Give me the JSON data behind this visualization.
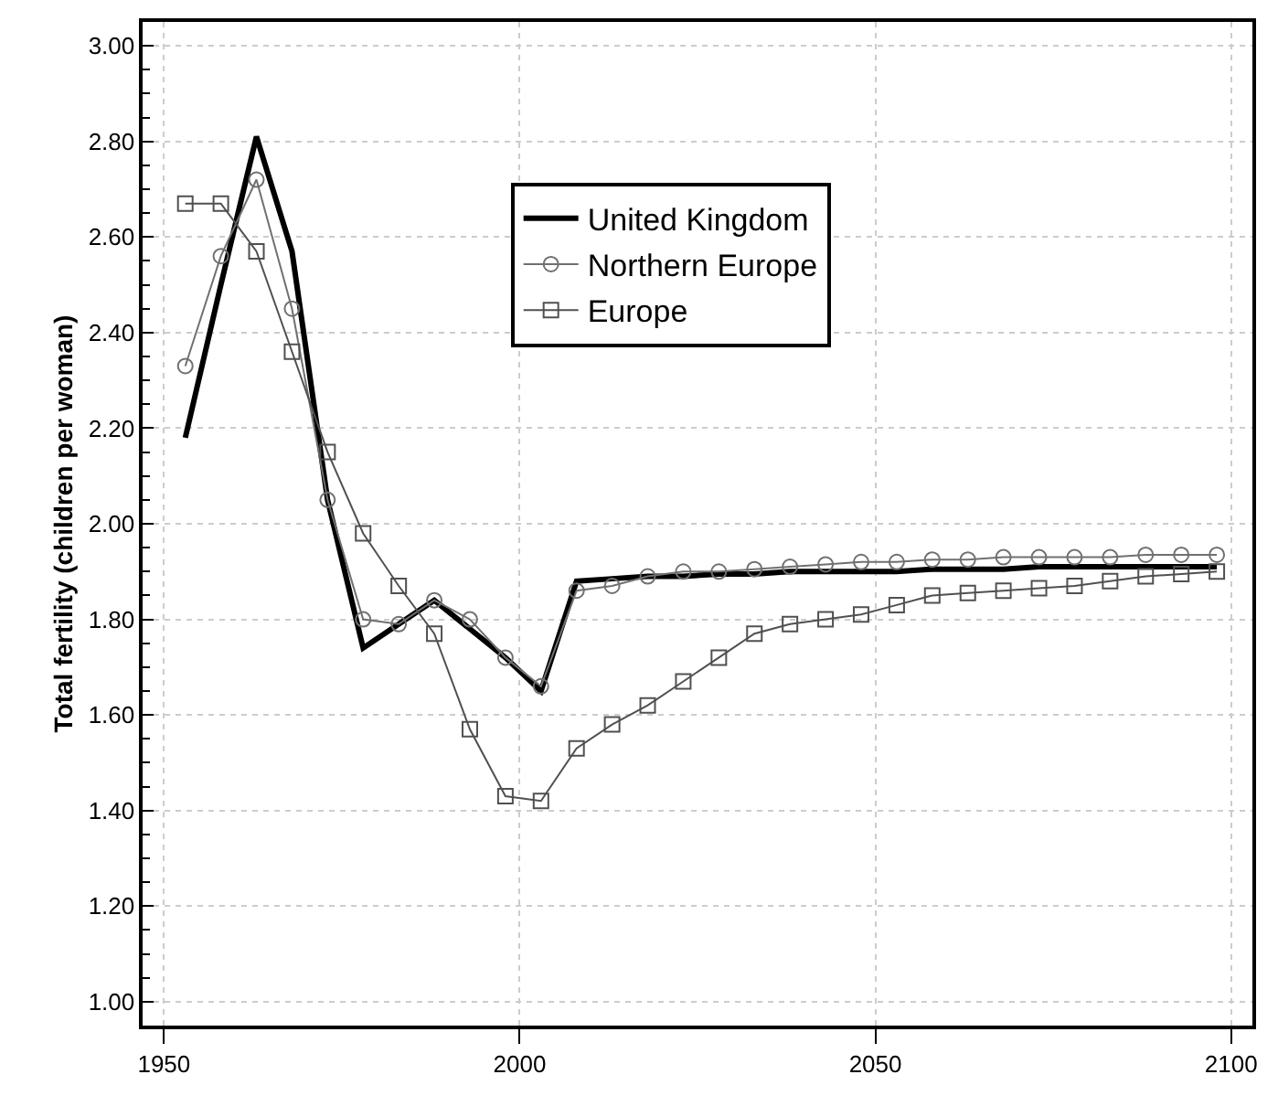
{
  "chart_data": {
    "type": "line",
    "ylabel": "Total fertility (children per woman)",
    "x": [
      1953,
      1958,
      1963,
      1968,
      1973,
      1978,
      1983,
      1988,
      1993,
      1998,
      2003,
      2008,
      2013,
      2018,
      2023,
      2028,
      2033,
      2038,
      2043,
      2048,
      2053,
      2058,
      2063,
      2068,
      2073,
      2078,
      2083,
      2088,
      2093,
      2098
    ],
    "series": [
      {
        "name": "United Kingdom",
        "color": "#000000",
        "marker": "none",
        "values": [
          2.18,
          2.5,
          2.81,
          2.57,
          2.05,
          1.74,
          1.79,
          1.84,
          1.78,
          1.72,
          1.65,
          1.88,
          1.885,
          1.89,
          1.89,
          1.895,
          1.895,
          1.9,
          1.9,
          1.9,
          1.9,
          1.905,
          1.905,
          1.905,
          1.91,
          1.91,
          1.91,
          1.91,
          1.91,
          1.91
        ]
      },
      {
        "name": "Northern Europe",
        "color": "#707070",
        "marker": "circle",
        "values": [
          2.33,
          2.56,
          2.72,
          2.45,
          2.05,
          1.8,
          1.79,
          1.84,
          1.8,
          1.72,
          1.66,
          1.86,
          1.87,
          1.89,
          1.9,
          1.9,
          1.905,
          1.91,
          1.915,
          1.92,
          1.92,
          1.925,
          1.925,
          1.93,
          1.93,
          1.93,
          1.93,
          1.935,
          1.935,
          1.935
        ]
      },
      {
        "name": "Europe",
        "color": "#505050",
        "marker": "square",
        "values": [
          2.67,
          2.67,
          2.57,
          2.36,
          2.15,
          1.98,
          1.87,
          1.77,
          1.57,
          1.43,
          1.42,
          1.53,
          1.58,
          1.62,
          1.67,
          1.72,
          1.77,
          1.79,
          1.8,
          1.81,
          1.83,
          1.85,
          1.855,
          1.86,
          1.865,
          1.87,
          1.88,
          1.89,
          1.895,
          1.9
        ]
      }
    ],
    "xlim": [
      1947,
      2103
    ],
    "xticks": [
      1950,
      2000,
      2050,
      2100
    ],
    "ylim": [
      0.95,
      3.05
    ],
    "yticks": [
      {
        "value": 1,
        "label": "1.00"
      },
      {
        "value": 1.2,
        "label": "1.20"
      },
      {
        "value": 1.4,
        "label": "1.40"
      },
      {
        "value": 1.6,
        "label": "1.60"
      },
      {
        "value": 1.8,
        "label": "1.80"
      },
      {
        "value": 2,
        "label": "2.00"
      },
      {
        "value": 2.2,
        "label": "2.20"
      },
      {
        "value": 2.4,
        "label": "2.40"
      },
      {
        "value": 2.6,
        "label": "2.60"
      },
      {
        "value": 2.8,
        "label": "2.80"
      },
      {
        "value": 3,
        "label": "3.00"
      }
    ],
    "grid": true,
    "legend": "top right",
    "line_style": "solid"
  }
}
